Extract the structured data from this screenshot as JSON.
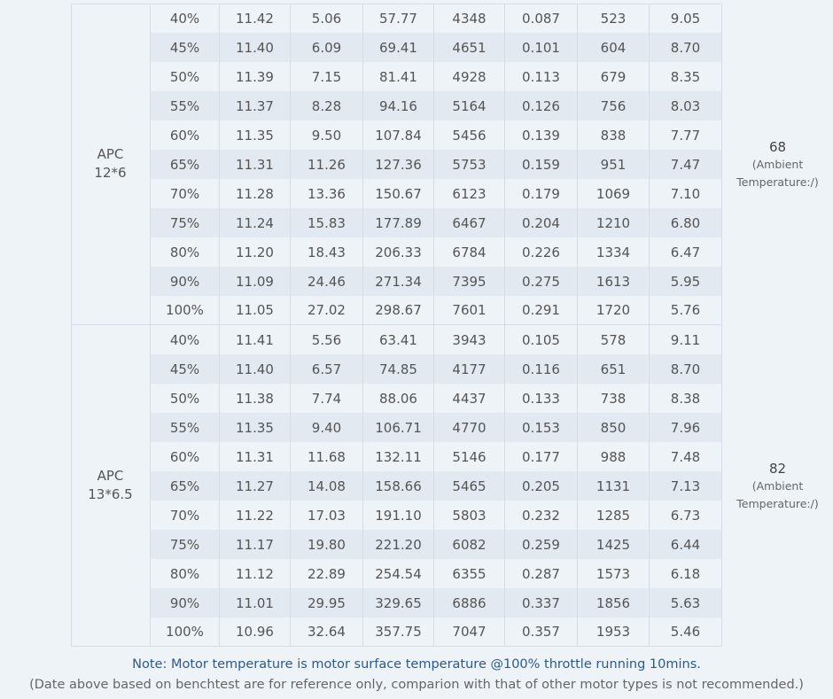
{
  "groups": [
    {
      "propeller": [
        "APC",
        "12*6"
      ],
      "temperature": "68",
      "temperature_note": "(Ambient Temperature:/)",
      "rows": [
        [
          "40%",
          "11.42",
          "5.06",
          "57.77",
          "4348",
          "0.087",
          "523",
          "9.05"
        ],
        [
          "45%",
          "11.40",
          "6.09",
          "69.41",
          "4651",
          "0.101",
          "604",
          "8.70"
        ],
        [
          "50%",
          "11.39",
          "7.15",
          "81.41",
          "4928",
          "0.113",
          "679",
          "8.35"
        ],
        [
          "55%",
          "11.37",
          "8.28",
          "94.16",
          "5164",
          "0.126",
          "756",
          "8.03"
        ],
        [
          "60%",
          "11.35",
          "9.50",
          "107.84",
          "5456",
          "0.139",
          "838",
          "7.77"
        ],
        [
          "65%",
          "11.31",
          "11.26",
          "127.36",
          "5753",
          "0.159",
          "951",
          "7.47"
        ],
        [
          "70%",
          "11.28",
          "13.36",
          "150.67",
          "6123",
          "0.179",
          "1069",
          "7.10"
        ],
        [
          "75%",
          "11.24",
          "15.83",
          "177.89",
          "6467",
          "0.204",
          "1210",
          "6.80"
        ],
        [
          "80%",
          "11.20",
          "18.43",
          "206.33",
          "6784",
          "0.226",
          "1334",
          "6.47"
        ],
        [
          "90%",
          "11.09",
          "24.46",
          "271.34",
          "7395",
          "0.275",
          "1613",
          "5.95"
        ],
        [
          "100%",
          "11.05",
          "27.02",
          "298.67",
          "7601",
          "0.291",
          "1720",
          "5.76"
        ]
      ]
    },
    {
      "propeller": [
        "APC",
        "13*6.5"
      ],
      "temperature": "82",
      "temperature_note": "(Ambient Temperature:/)",
      "rows": [
        [
          "40%",
          "11.41",
          "5.56",
          "63.41",
          "3943",
          "0.105",
          "578",
          "9.11"
        ],
        [
          "45%",
          "11.40",
          "6.57",
          "74.85",
          "4177",
          "0.116",
          "651",
          "8.70"
        ],
        [
          "50%",
          "11.38",
          "7.74",
          "88.06",
          "4437",
          "0.133",
          "738",
          "8.38"
        ],
        [
          "55%",
          "11.35",
          "9.40",
          "106.71",
          "4770",
          "0.153",
          "850",
          "7.96"
        ],
        [
          "60%",
          "11.31",
          "11.68",
          "132.11",
          "5146",
          "0.177",
          "988",
          "7.48"
        ],
        [
          "65%",
          "11.27",
          "14.08",
          "158.66",
          "5465",
          "0.205",
          "1131",
          "7.13"
        ],
        [
          "70%",
          "11.22",
          "17.03",
          "191.10",
          "5803",
          "0.232",
          "1285",
          "6.73"
        ],
        [
          "75%",
          "11.17",
          "19.80",
          "221.20",
          "6082",
          "0.259",
          "1425",
          "6.44"
        ],
        [
          "80%",
          "11.12",
          "22.89",
          "254.54",
          "6355",
          "0.287",
          "1573",
          "6.18"
        ],
        [
          "90%",
          "11.01",
          "29.95",
          "329.65",
          "6886",
          "0.337",
          "1856",
          "5.63"
        ],
        [
          "100%",
          "10.96",
          "32.64",
          "357.75",
          "7047",
          "0.357",
          "1953",
          "5.46"
        ]
      ]
    }
  ],
  "notes": [
    "Note: Motor temperature is motor surface temperature @100% throttle running 10mins.",
    "(Date above based on benchtest are for reference only, comparion with that of other motor types is not recommended.)"
  ]
}
